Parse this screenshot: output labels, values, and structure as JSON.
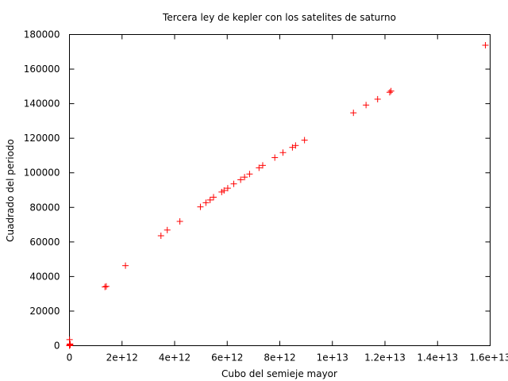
{
  "chart_data": {
    "type": "scatter",
    "title": "Tercera ley de kepler con los satelites de saturno",
    "xlabel": "Cubo del semieje mayor",
    "ylabel": "Cuadrado del periodo",
    "xlim": [
      0,
      16000000000000
    ],
    "ylim": [
      0,
      180000
    ],
    "xticks": [
      0,
      2000000000000,
      4000000000000,
      6000000000000,
      8000000000000,
      10000000000000,
      12000000000000,
      14000000000000,
      16000000000000
    ],
    "xtick_labels": [
      "0",
      "2e+12",
      "4e+12",
      "6e+12",
      "8e+12",
      "1e+13",
      "1.2e+13",
      "1.4e+13",
      "1.6e+13"
    ],
    "yticks": [
      0,
      20000,
      40000,
      60000,
      80000,
      100000,
      120000,
      140000,
      160000,
      180000
    ],
    "ytick_labels": [
      "0",
      "20000",
      "40000",
      "60000",
      "80000",
      "100000",
      "120000",
      "140000",
      "160000",
      "180000"
    ],
    "grid": false,
    "legend": "none",
    "marker": "+",
    "color": "#ff0000",
    "series": [
      {
        "x": [
          0,
          10000000000,
          20000000000,
          5000000000,
          15000000000,
          30000000000,
          1350000000000,
          1400000000000,
          2130000000000,
          3480000000000,
          3720000000000,
          4200000000000,
          4980000000000,
          5190000000000,
          5350000000000,
          5480000000000,
          5790000000000,
          5880000000000,
          6020000000000,
          6250000000000,
          6510000000000,
          6660000000000,
          6850000000000,
          7210000000000,
          7350000000000,
          7810000000000,
          8120000000000,
          8480000000000,
          8600000000000,
          8940000000000,
          10800000000000,
          11280000000000,
          11720000000000,
          12180000000000,
          12230000000000,
          15820000000000
        ],
        "y": [
          0,
          500,
          1000,
          3500,
          200,
          700,
          34000,
          34300,
          46300,
          63600,
          66900,
          71900,
          80300,
          82700,
          84300,
          85900,
          88900,
          89800,
          91100,
          93600,
          96000,
          97500,
          99300,
          102900,
          104300,
          108800,
          111700,
          114700,
          115800,
          118900,
          134700,
          139200,
          142600,
          146600,
          147300,
          173800
        ]
      }
    ]
  }
}
